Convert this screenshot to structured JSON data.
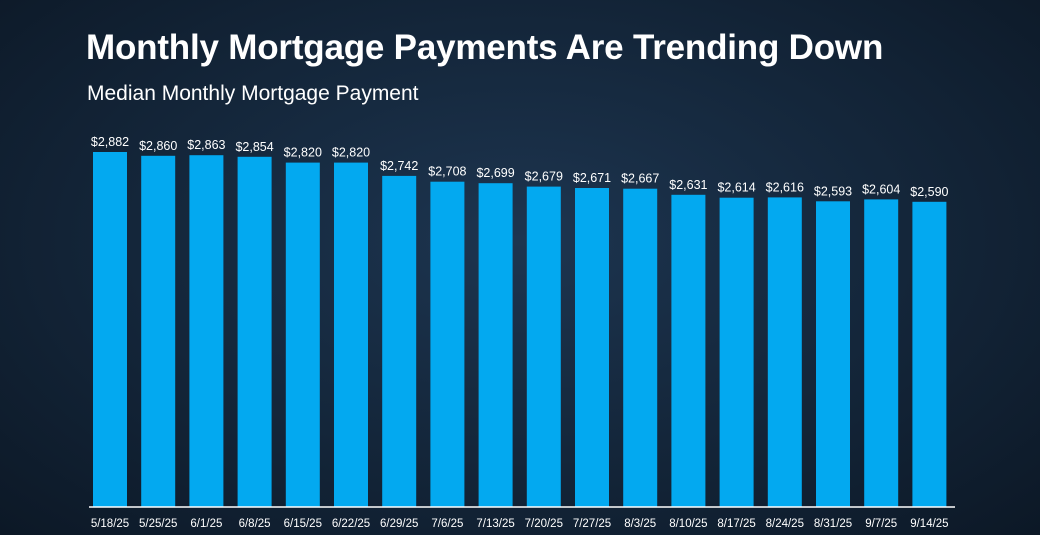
{
  "chart_data": {
    "type": "bar",
    "title": "Monthly Mortgage Payments Are Trending Down",
    "subtitle": "Median Monthly Mortgage Payment",
    "categories": [
      "5/18/25",
      "5/25/25",
      "6/1/25",
      "6/8/25",
      "6/15/25",
      "6/22/25",
      "6/29/25",
      "7/6/25",
      "7/13/25",
      "7/20/25",
      "7/27/25",
      "8/3/25",
      "8/10/25",
      "8/17/25",
      "8/24/25",
      "8/31/25",
      "9/7/25",
      "9/14/25"
    ],
    "values": [
      2882,
      2860,
      2863,
      2854,
      2820,
      2820,
      2742,
      2708,
      2699,
      2679,
      2671,
      2667,
      2631,
      2614,
      2616,
      2593,
      2604,
      2590
    ],
    "data_labels": [
      "$2,882",
      "$2,860",
      "$2,863",
      "$2,854",
      "$2,820",
      "$2,820",
      "$2,742",
      "$2,708",
      "$2,699",
      "$2,679",
      "$2,671",
      "$2,667",
      "$2,631",
      "$2,614",
      "$2,616",
      "$2,593",
      "$2,604",
      "$2,590"
    ],
    "xlabel": "",
    "ylabel": "",
    "ylim": [
      800,
      2882
    ],
    "grid": false,
    "bar_color": "#03a9f0",
    "background_color": "#15283d"
  }
}
